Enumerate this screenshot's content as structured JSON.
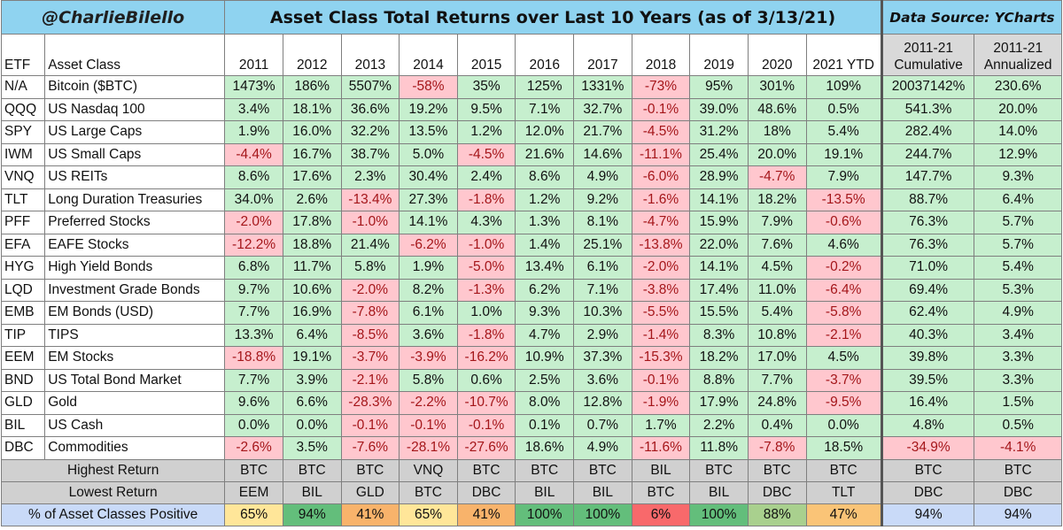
{
  "brand": "@CharlieBilello",
  "title": "Asset Class Total Returns over Last 10 Years (as of 3/13/21)",
  "source": "Data Source: YCharts",
  "headers": {
    "etf": "ETF",
    "asset": "Asset Class",
    "years": [
      "2011",
      "2012",
      "2013",
      "2014",
      "2015",
      "2016",
      "2017",
      "2018",
      "2019",
      "2020",
      "2021 YTD"
    ],
    "cum": [
      "2011-21",
      "Cumulative"
    ],
    "ann": [
      "2011-21",
      "Annualized"
    ]
  },
  "rows": [
    {
      "etf": "N/A",
      "name": "Bitcoin ($BTC)",
      "values": [
        "1473%",
        "186%",
        "5507%",
        "-58%",
        "35%",
        "125%",
        "1331%",
        "-73%",
        "95%",
        "301%",
        "109%",
        "20037142%",
        "230.6%"
      ]
    },
    {
      "etf": "QQQ",
      "name": "US Nasdaq 100",
      "values": [
        "3.4%",
        "18.1%",
        "36.6%",
        "19.2%",
        "9.5%",
        "7.1%",
        "32.7%",
        "-0.1%",
        "39.0%",
        "48.6%",
        "0.5%",
        "541.3%",
        "20.0%"
      ]
    },
    {
      "etf": "SPY",
      "name": "US Large Caps",
      "values": [
        "1.9%",
        "16.0%",
        "32.2%",
        "13.5%",
        "1.2%",
        "12.0%",
        "21.7%",
        "-4.5%",
        "31.2%",
        "18%",
        "5.4%",
        "282.4%",
        "14.0%"
      ]
    },
    {
      "etf": "IWM",
      "name": "US Small Caps",
      "values": [
        "-4.4%",
        "16.7%",
        "38.7%",
        "5.0%",
        "-4.5%",
        "21.6%",
        "14.6%",
        "-11.1%",
        "25.4%",
        "20.0%",
        "19.1%",
        "244.7%",
        "12.9%"
      ]
    },
    {
      "etf": "VNQ",
      "name": "US REITs",
      "values": [
        "8.6%",
        "17.6%",
        "2.3%",
        "30.4%",
        "2.4%",
        "8.6%",
        "4.9%",
        "-6.0%",
        "28.9%",
        "-4.7%",
        "7.9%",
        "147.7%",
        "9.3%"
      ]
    },
    {
      "etf": "TLT",
      "name": "Long Duration Treasuries",
      "values": [
        "34.0%",
        "2.6%",
        "-13.4%",
        "27.3%",
        "-1.8%",
        "1.2%",
        "9.2%",
        "-1.6%",
        "14.1%",
        "18.2%",
        "-13.5%",
        "88.7%",
        "6.4%"
      ]
    },
    {
      "etf": "PFF",
      "name": "Preferred Stocks",
      "values": [
        "-2.0%",
        "17.8%",
        "-1.0%",
        "14.1%",
        "4.3%",
        "1.3%",
        "8.1%",
        "-4.7%",
        "15.9%",
        "7.9%",
        "-0.6%",
        "76.3%",
        "5.7%"
      ]
    },
    {
      "etf": "EFA",
      "name": "EAFE Stocks",
      "values": [
        "-12.2%",
        "18.8%",
        "21.4%",
        "-6.2%",
        "-1.0%",
        "1.4%",
        "25.1%",
        "-13.8%",
        "22.0%",
        "7.6%",
        "4.6%",
        "76.3%",
        "5.7%"
      ]
    },
    {
      "etf": "HYG",
      "name": "High Yield Bonds",
      "values": [
        "6.8%",
        "11.7%",
        "5.8%",
        "1.9%",
        "-5.0%",
        "13.4%",
        "6.1%",
        "-2.0%",
        "14.1%",
        "4.5%",
        "-0.2%",
        "71.0%",
        "5.4%"
      ]
    },
    {
      "etf": "LQD",
      "name": "Investment Grade Bonds",
      "values": [
        "9.7%",
        "10.6%",
        "-2.0%",
        "8.2%",
        "-1.3%",
        "6.2%",
        "7.1%",
        "-3.8%",
        "17.4%",
        "11.0%",
        "-6.4%",
        "69.4%",
        "5.3%"
      ]
    },
    {
      "etf": "EMB",
      "name": "EM Bonds (USD)",
      "values": [
        "7.7%",
        "16.9%",
        "-7.8%",
        "6.1%",
        "1.0%",
        "9.3%",
        "10.3%",
        "-5.5%",
        "15.5%",
        "5.4%",
        "-5.8%",
        "62.4%",
        "4.9%"
      ]
    },
    {
      "etf": "TIP",
      "name": "TIPS",
      "values": [
        "13.3%",
        "6.4%",
        "-8.5%",
        "3.6%",
        "-1.8%",
        "4.7%",
        "2.9%",
        "-1.4%",
        "8.3%",
        "10.8%",
        "-2.1%",
        "40.3%",
        "3.4%"
      ]
    },
    {
      "etf": "EEM",
      "name": "EM Stocks",
      "values": [
        "-18.8%",
        "19.1%",
        "-3.7%",
        "-3.9%",
        "-16.2%",
        "10.9%",
        "37.3%",
        "-15.3%",
        "18.2%",
        "17.0%",
        "4.5%",
        "39.8%",
        "3.3%"
      ]
    },
    {
      "etf": "BND",
      "name": "US Total Bond Market",
      "values": [
        "7.7%",
        "3.9%",
        "-2.1%",
        "5.8%",
        "0.6%",
        "2.5%",
        "3.6%",
        "-0.1%",
        "8.8%",
        "7.7%",
        "-3.7%",
        "39.5%",
        "3.3%"
      ]
    },
    {
      "etf": "GLD",
      "name": "Gold",
      "values": [
        "9.6%",
        "6.6%",
        "-28.3%",
        "-2.2%",
        "-10.7%",
        "8.0%",
        "12.8%",
        "-1.9%",
        "17.9%",
        "24.8%",
        "-9.5%",
        "16.4%",
        "1.5%"
      ]
    },
    {
      "etf": "BIL",
      "name": "US Cash",
      "values": [
        "0.0%",
        "0.0%",
        "-0.1%",
        "-0.1%",
        "-0.1%",
        "0.1%",
        "0.7%",
        "1.7%",
        "2.2%",
        "0.4%",
        "0.0%",
        "4.8%",
        "0.5%"
      ]
    },
    {
      "etf": "DBC",
      "name": "Commodities",
      "values": [
        "-2.6%",
        "3.5%",
        "-7.6%",
        "-28.1%",
        "-27.6%",
        "18.6%",
        "4.9%",
        "-11.6%",
        "11.8%",
        "-7.8%",
        "18.5%",
        "-34.9%",
        "-4.1%"
      ]
    }
  ],
  "highest": {
    "label": "Highest Return",
    "values": [
      "BTC",
      "BTC",
      "BTC",
      "VNQ",
      "BTC",
      "BTC",
      "BTC",
      "BIL",
      "BTC",
      "BTC",
      "BTC",
      "BTC",
      "BTC"
    ]
  },
  "lowest": {
    "label": "Lowest Return",
    "values": [
      "EEM",
      "BIL",
      "GLD",
      "BTC",
      "DBC",
      "BIL",
      "BIL",
      "BTC",
      "BIL",
      "DBC",
      "TLT",
      "DBC",
      "DBC"
    ]
  },
  "positive": {
    "label": "% of Asset Classes Positive",
    "values": [
      "65%",
      "94%",
      "41%",
      "65%",
      "41%",
      "100%",
      "100%",
      "6%",
      "100%",
      "88%",
      "47%",
      "94%",
      "94%"
    ],
    "colors": [
      "#ffe699",
      "#63be7b",
      "#f8b36b",
      "#ffe699",
      "#f8b36b",
      "#63be7b",
      "#63be7b",
      "#f8696b",
      "#63be7b",
      "#a9d08e",
      "#fac477",
      "#c9daf8",
      "#c9daf8"
    ]
  },
  "chart_data": {
    "type": "table",
    "title": "Asset Class Total Returns over Last 10 Years (as of 3/13/21)",
    "columns": [
      "ETF",
      "Asset Class",
      "2011",
      "2012",
      "2013",
      "2014",
      "2015",
      "2016",
      "2017",
      "2018",
      "2019",
      "2020",
      "2021 YTD",
      "2011-21 Cumulative",
      "2011-21 Annualized"
    ],
    "colors": {
      "positive": "#c6efce",
      "negative": "#ffc7ce",
      "header": "#8fd3f0"
    }
  }
}
